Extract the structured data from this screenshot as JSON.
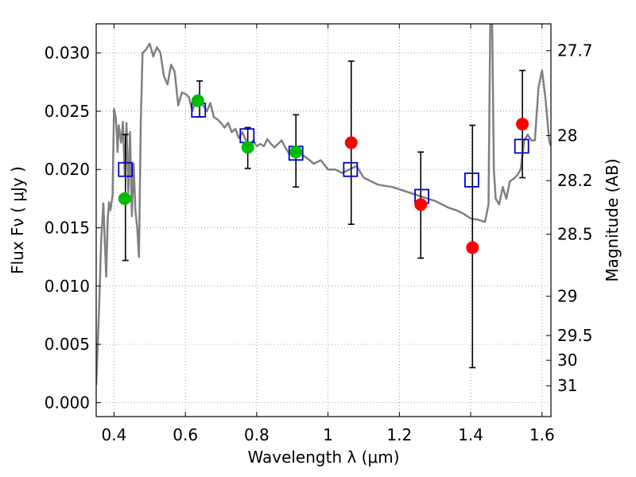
{
  "chart_data": {
    "type": "scatter",
    "xlabel": "Wavelength  λ (μm)",
    "ylabel": "Flux  Fν  ( μJy )",
    "ylabel_right": "Magnitude (AB)",
    "xlim": [
      0.35,
      1.625
    ],
    "ylim": [
      -0.0012,
      0.0325
    ],
    "grid": true,
    "xticks": [
      {
        "value": 0.4,
        "label": "0.4"
      },
      {
        "value": 0.6,
        "label": "0.6"
      },
      {
        "value": 0.8,
        "label": "0.8"
      },
      {
        "value": 1.0,
        "label": "1"
      },
      {
        "value": 1.2,
        "label": "1.2"
      },
      {
        "value": 1.4,
        "label": "1.4"
      },
      {
        "value": 1.6,
        "label": "1.6"
      }
    ],
    "yticks": [
      {
        "value": 0.0,
        "label": "0.000"
      },
      {
        "value": 0.005,
        "label": "0.005"
      },
      {
        "value": 0.01,
        "label": "0.010"
      },
      {
        "value": 0.015,
        "label": "0.015"
      },
      {
        "value": 0.02,
        "label": "0.020"
      },
      {
        "value": 0.025,
        "label": "0.025"
      },
      {
        "value": 0.03,
        "label": "0.030"
      }
    ],
    "yticks_right": [
      {
        "value": 27.7,
        "label": "27.7"
      },
      {
        "value": 28.0,
        "label": "28"
      },
      {
        "value": 28.2,
        "label": "28.2"
      },
      {
        "value": 28.5,
        "label": "28.5"
      },
      {
        "value": 29.0,
        "label": "29"
      },
      {
        "value": 29.5,
        "label": "29.5"
      },
      {
        "value": 30.0,
        "label": "30"
      },
      {
        "value": 31.0,
        "label": "31"
      }
    ],
    "colors": {
      "model": "#808080",
      "green": "#00bb00",
      "red": "#ff0000",
      "box": "#0000cc",
      "errorbar": "#000000",
      "grid": "#888888"
    },
    "model_spectrum": {
      "x": [
        0.35,
        0.358,
        0.364,
        0.37,
        0.378,
        0.382,
        0.386,
        0.39,
        0.396,
        0.4,
        0.405,
        0.408,
        0.41,
        0.413,
        0.416,
        0.42,
        0.425,
        0.43,
        0.435,
        0.44,
        0.445,
        0.45,
        0.455,
        0.46,
        0.465,
        0.47,
        0.475,
        0.48,
        0.49,
        0.5,
        0.51,
        0.52,
        0.53,
        0.54,
        0.55,
        0.56,
        0.57,
        0.58,
        0.59,
        0.6,
        0.61,
        0.62,
        0.63,
        0.64,
        0.65,
        0.66,
        0.67,
        0.68,
        0.69,
        0.7,
        0.71,
        0.72,
        0.73,
        0.74,
        0.75,
        0.76,
        0.77,
        0.78,
        0.79,
        0.8,
        0.81,
        0.82,
        0.83,
        0.84,
        0.85,
        0.86,
        0.87,
        0.88,
        0.89,
        0.9,
        0.92,
        0.94,
        0.96,
        0.98,
        1.0,
        1.02,
        1.04,
        1.06,
        1.08,
        1.1,
        1.12,
        1.14,
        1.16,
        1.18,
        1.2,
        1.22,
        1.24,
        1.26,
        1.28,
        1.3,
        1.32,
        1.34,
        1.36,
        1.38,
        1.4,
        1.42,
        1.44,
        1.45,
        1.455,
        1.46,
        1.465,
        1.47,
        1.48,
        1.49,
        1.5,
        1.51,
        1.52,
        1.53,
        1.54,
        1.55,
        1.56,
        1.57,
        1.58,
        1.59,
        1.6,
        1.61,
        1.62,
        1.625
      ],
      "y": [
        0.0015,
        0.008,
        0.014,
        0.0171,
        0.0108,
        0.0156,
        0.0172,
        0.0165,
        0.0178,
        0.0252,
        0.0244,
        0.023,
        0.0215,
        0.0238,
        0.0232,
        0.0223,
        0.0241,
        0.0195,
        0.024,
        0.018,
        0.0232,
        0.016,
        0.0205,
        0.0165,
        0.015,
        0.0125,
        0.024,
        0.03,
        0.0303,
        0.0308,
        0.0297,
        0.0305,
        0.03,
        0.028,
        0.0273,
        0.029,
        0.0284,
        0.0255,
        0.0266,
        0.0265,
        0.0262,
        0.025,
        0.0262,
        0.0258,
        0.0255,
        0.025,
        0.0257,
        0.0245,
        0.0243,
        0.024,
        0.0236,
        0.024,
        0.0232,
        0.0235,
        0.0227,
        0.0232,
        0.0225,
        0.022,
        0.0225,
        0.022,
        0.0222,
        0.022,
        0.0226,
        0.0222,
        0.0219,
        0.0222,
        0.0225,
        0.0219,
        0.0214,
        0.0217,
        0.0214,
        0.021,
        0.0205,
        0.0208,
        0.02,
        0.02,
        0.0197,
        0.02,
        0.0203,
        0.0193,
        0.019,
        0.0187,
        0.0186,
        0.0185,
        0.0183,
        0.0181,
        0.0179,
        0.0177,
        0.0175,
        0.0173,
        0.017,
        0.0167,
        0.0165,
        0.0162,
        0.0158,
        0.0157,
        0.0155,
        0.017,
        0.033,
        0.033,
        0.02,
        0.0175,
        0.017,
        0.0185,
        0.0175,
        0.019,
        0.0192,
        0.0195,
        0.02,
        0.0225,
        0.023,
        0.0225,
        0.0225,
        0.027,
        0.0285,
        0.026,
        0.0225,
        0.022
      ]
    },
    "green_points": [
      {
        "x": 0.43,
        "y": 0.0175
      },
      {
        "x": 0.635,
        "y": 0.0259
      },
      {
        "x": 0.775,
        "y": 0.0219
      },
      {
        "x": 0.91,
        "y": 0.0215
      }
    ],
    "red_points": [
      {
        "x": 1.065,
        "y": 0.0223
      },
      {
        "x": 1.26,
        "y": 0.017
      },
      {
        "x": 1.405,
        "y": 0.0133
      },
      {
        "x": 1.545,
        "y": 0.0239
      }
    ],
    "model_boxes": [
      {
        "x": 0.432,
        "y": 0.02
      },
      {
        "x": 0.637,
        "y": 0.0251
      },
      {
        "x": 0.773,
        "y": 0.0229
      },
      {
        "x": 0.91,
        "y": 0.0214
      },
      {
        "x": 1.063,
        "y": 0.02
      },
      {
        "x": 1.263,
        "y": 0.0177
      },
      {
        "x": 1.403,
        "y": 0.0191
      },
      {
        "x": 1.543,
        "y": 0.022
      }
    ],
    "error_bars": [
      {
        "x": 0.432,
        "low": 0.0122,
        "high": 0.023
      },
      {
        "x": 0.64,
        "low": 0.0245,
        "high": 0.0276
      },
      {
        "x": 0.775,
        "low": 0.0201,
        "high": 0.0236
      },
      {
        "x": 0.91,
        "low": 0.0185,
        "high": 0.0247
      },
      {
        "x": 1.065,
        "low": 0.0153,
        "high": 0.0293
      },
      {
        "x": 1.26,
        "low": 0.0124,
        "high": 0.0215
      },
      {
        "x": 1.405,
        "low": 0.003,
        "high": 0.0238
      },
      {
        "x": 1.545,
        "low": 0.0193,
        "high": 0.0285
      }
    ]
  }
}
